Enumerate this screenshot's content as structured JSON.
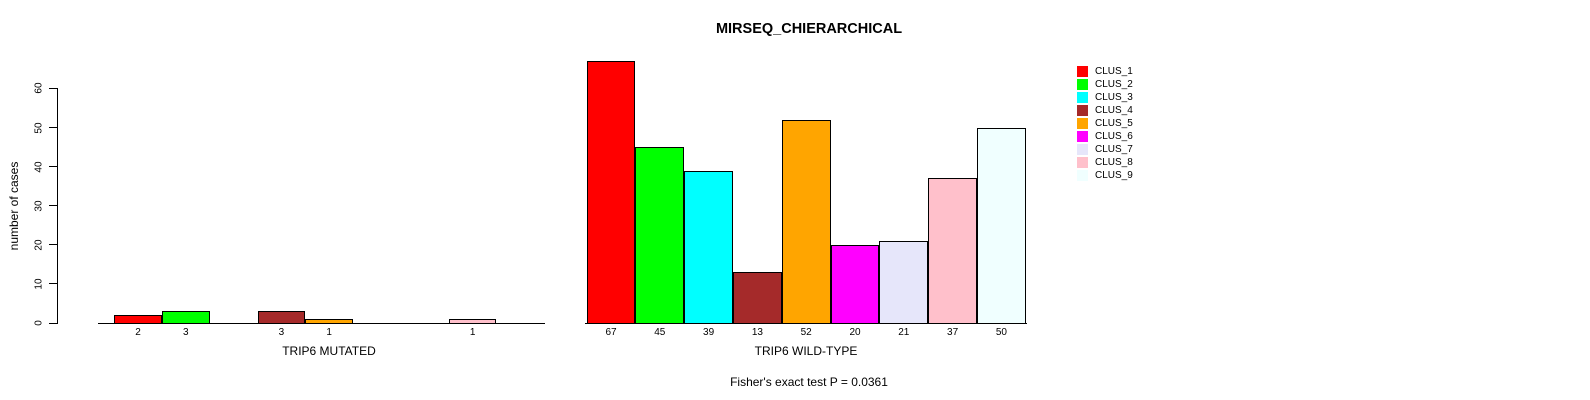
{
  "chart_data": {
    "type": "bar",
    "title": "MIRSEQ_CHIERARCHICAL",
    "ylabel": "number of cases",
    "ylim": [
      0,
      60
    ],
    "yticks": [
      0,
      10,
      20,
      30,
      40,
      50,
      60
    ],
    "grid": false,
    "legend_position": "right",
    "clusters": [
      {
        "label": "CLUS_1",
        "color": "#FF0000"
      },
      {
        "label": "CLUS_2",
        "color": "#00FF00"
      },
      {
        "label": "CLUS_3",
        "color": "#00FFFF"
      },
      {
        "label": "CLUS_4",
        "color": "#A52A2A"
      },
      {
        "label": "CLUS_5",
        "color": "#FFA500"
      },
      {
        "label": "CLUS_6",
        "color": "#FF00FF"
      },
      {
        "label": "CLUS_7",
        "color": "#E6E6FA"
      },
      {
        "label": "CLUS_8",
        "color": "#FFC0CB"
      },
      {
        "label": "CLUS_9",
        "color": "#F0FFFF"
      }
    ],
    "panels": [
      {
        "xlabel": "TRIP6 MUTATED",
        "values": [
          2,
          3,
          0,
          3,
          1,
          0,
          0,
          1,
          0
        ]
      },
      {
        "xlabel": "TRIP6 WILD-TYPE",
        "values": [
          67,
          45,
          39,
          13,
          52,
          20,
          21,
          37,
          50
        ]
      }
    ],
    "annotation": "Fisher's exact test P = 0.0361"
  }
}
